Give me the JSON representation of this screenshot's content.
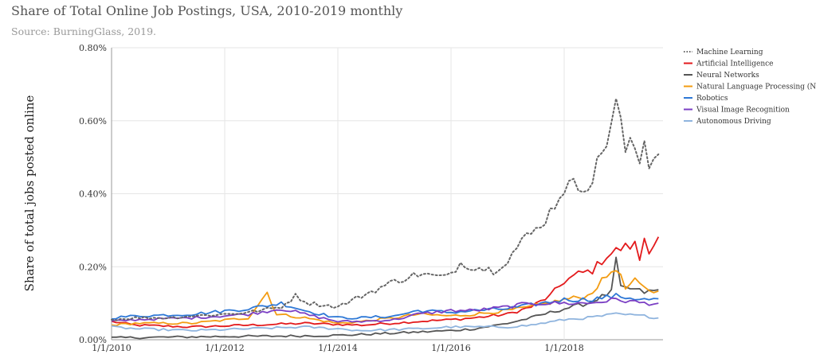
{
  "chart_data": {
    "type": "line",
    "title": "Share of Total Online Job Postings, USA, 2010-2019 monthly",
    "subtitle": "Source: BurningGlass, 2019.",
    "ylabel": "Share of total jobs posted online",
    "xlabel": "",
    "x_ticks": [
      "1/1/2010",
      "1/1/2012",
      "1/1/2014",
      "1/1/2016",
      "1/1/2018"
    ],
    "y_ticks": [
      "0.00%",
      "0.20%",
      "0.40%",
      "0.60%",
      "0.80%"
    ],
    "ylim": [
      0,
      0.8
    ],
    "xlim": [
      "2010-01",
      "2019-09"
    ],
    "y_unit": "%",
    "grid": true,
    "legend_position": "right",
    "series": [
      {
        "name": "Machine Learning",
        "color": "#666666",
        "dash": "dotted",
        "keypoints": [
          [
            "2010-01",
            0.055
          ],
          [
            "2010-06",
            0.06
          ],
          [
            "2011-01",
            0.06
          ],
          [
            "2011-06",
            0.065
          ],
          [
            "2012-01",
            0.07
          ],
          [
            "2012-06",
            0.075
          ],
          [
            "2013-01",
            0.09
          ],
          [
            "2013-04",
            0.12
          ],
          [
            "2013-07",
            0.1
          ],
          [
            "2014-01",
            0.09
          ],
          [
            "2014-06",
            0.12
          ],
          [
            "2015-01",
            0.16
          ],
          [
            "2015-06",
            0.18
          ],
          [
            "2015-12",
            0.17
          ],
          [
            "2016-03",
            0.21
          ],
          [
            "2016-06",
            0.2
          ],
          [
            "2016-10",
            0.19
          ],
          [
            "2017-01",
            0.22
          ],
          [
            "2017-04",
            0.27
          ],
          [
            "2017-07",
            0.3
          ],
          [
            "2017-10",
            0.35
          ],
          [
            "2018-01",
            0.42
          ],
          [
            "2018-04",
            0.42
          ],
          [
            "2018-07",
            0.44
          ],
          [
            "2018-10",
            0.55
          ],
          [
            "2018-12",
            0.65
          ],
          [
            "2019-02",
            0.52
          ],
          [
            "2019-04",
            0.53
          ],
          [
            "2019-05",
            0.48
          ],
          [
            "2019-06",
            0.56
          ],
          [
            "2019-07",
            0.49
          ],
          [
            "2019-09",
            0.51
          ]
        ]
      },
      {
        "name": "Artificial Intelligence",
        "color": "#e31a1c",
        "dash": "solid",
        "keypoints": [
          [
            "2010-01",
            0.05
          ],
          [
            "2010-06",
            0.04
          ],
          [
            "2011-06",
            0.035
          ],
          [
            "2012-06",
            0.04
          ],
          [
            "2013-06",
            0.045
          ],
          [
            "2014-06",
            0.04
          ],
          [
            "2015-06",
            0.05
          ],
          [
            "2016-01",
            0.055
          ],
          [
            "2016-06",
            0.06
          ],
          [
            "2017-01",
            0.07
          ],
          [
            "2017-06",
            0.09
          ],
          [
            "2017-10",
            0.12
          ],
          [
            "2018-01",
            0.16
          ],
          [
            "2018-04",
            0.18
          ],
          [
            "2018-07",
            0.19
          ],
          [
            "2018-10",
            0.23
          ],
          [
            "2019-01",
            0.25
          ],
          [
            "2019-04",
            0.26
          ],
          [
            "2019-05",
            0.22
          ],
          [
            "2019-06",
            0.28
          ],
          [
            "2019-07",
            0.25
          ],
          [
            "2019-09",
            0.275
          ]
        ]
      },
      {
        "name": "Neural Networks",
        "color": "#555555",
        "dash": "solid",
        "keypoints": [
          [
            "2010-01",
            0.005
          ],
          [
            "2011-01",
            0.007
          ],
          [
            "2012-01",
            0.009
          ],
          [
            "2013-01",
            0.01
          ],
          [
            "2014-01",
            0.012
          ],
          [
            "2015-01",
            0.018
          ],
          [
            "2016-01",
            0.025
          ],
          [
            "2016-06",
            0.03
          ],
          [
            "2017-01",
            0.045
          ],
          [
            "2017-06",
            0.06
          ],
          [
            "2018-01",
            0.085
          ],
          [
            "2018-06",
            0.1
          ],
          [
            "2018-11",
            0.13
          ],
          [
            "2018-12",
            0.22
          ],
          [
            "2019-01",
            0.14
          ],
          [
            "2019-03",
            0.14
          ],
          [
            "2019-06",
            0.13
          ],
          [
            "2019-09",
            0.135
          ]
        ]
      },
      {
        "name": "Natural Language Processing (NLP)",
        "color": "#f39c12",
        "dash": "solid",
        "keypoints": [
          [
            "2010-01",
            0.04
          ],
          [
            "2010-06",
            0.045
          ],
          [
            "2011-06",
            0.045
          ],
          [
            "2012-06",
            0.06
          ],
          [
            "2012-10",
            0.13
          ],
          [
            "2012-12",
            0.07
          ],
          [
            "2013-06",
            0.06
          ],
          [
            "2014-01",
            0.045
          ],
          [
            "2014-06",
            0.05
          ],
          [
            "2015-01",
            0.06
          ],
          [
            "2015-06",
            0.07
          ],
          [
            "2016-01",
            0.065
          ],
          [
            "2016-06",
            0.07
          ],
          [
            "2017-01",
            0.08
          ],
          [
            "2017-06",
            0.09
          ],
          [
            "2018-01",
            0.11
          ],
          [
            "2018-06",
            0.12
          ],
          [
            "2018-12",
            0.2
          ],
          [
            "2019-02",
            0.14
          ],
          [
            "2019-04",
            0.16
          ],
          [
            "2019-06",
            0.14
          ],
          [
            "2019-09",
            0.13
          ]
        ]
      },
      {
        "name": "Robotics",
        "color": "#2e78d6",
        "dash": "solid",
        "keypoints": [
          [
            "2010-01",
            0.06
          ],
          [
            "2010-06",
            0.065
          ],
          [
            "2011-06",
            0.07
          ],
          [
            "2012-06",
            0.085
          ],
          [
            "2013-01",
            0.1
          ],
          [
            "2013-06",
            0.08
          ],
          [
            "2014-01",
            0.06
          ],
          [
            "2014-06",
            0.06
          ],
          [
            "2015-01",
            0.065
          ],
          [
            "2015-06",
            0.08
          ],
          [
            "2016-01",
            0.075
          ],
          [
            "2016-06",
            0.08
          ],
          [
            "2017-01",
            0.085
          ],
          [
            "2017-06",
            0.095
          ],
          [
            "2018-01",
            0.11
          ],
          [
            "2018-06",
            0.11
          ],
          [
            "2018-12",
            0.12
          ],
          [
            "2019-06",
            0.11
          ],
          [
            "2019-09",
            0.11
          ]
        ]
      },
      {
        "name": "Visual Image Recognition",
        "color": "#7b3fc4",
        "dash": "solid",
        "keypoints": [
          [
            "2010-01",
            0.05
          ],
          [
            "2010-06",
            0.055
          ],
          [
            "2011-06",
            0.06
          ],
          [
            "2012-06",
            0.07
          ],
          [
            "2013-01",
            0.085
          ],
          [
            "2013-06",
            0.07
          ],
          [
            "2014-01",
            0.05
          ],
          [
            "2014-06",
            0.05
          ],
          [
            "2015-01",
            0.055
          ],
          [
            "2015-06",
            0.07
          ],
          [
            "2016-01",
            0.08
          ],
          [
            "2016-06",
            0.08
          ],
          [
            "2017-01",
            0.09
          ],
          [
            "2017-06",
            0.1
          ],
          [
            "2018-01",
            0.1
          ],
          [
            "2018-06",
            0.1
          ],
          [
            "2018-12",
            0.11
          ],
          [
            "2019-06",
            0.1
          ],
          [
            "2019-09",
            0.1
          ]
        ]
      },
      {
        "name": "Autonomous Driving",
        "color": "#8fb4de",
        "dash": "solid",
        "keypoints": [
          [
            "2010-01",
            0.035
          ],
          [
            "2010-06",
            0.03
          ],
          [
            "2011-06",
            0.025
          ],
          [
            "2012-06",
            0.03
          ],
          [
            "2013-06",
            0.035
          ],
          [
            "2014-01",
            0.03
          ],
          [
            "2014-06",
            0.025
          ],
          [
            "2015-06",
            0.03
          ],
          [
            "2016-01",
            0.035
          ],
          [
            "2016-06",
            0.035
          ],
          [
            "2017-01",
            0.035
          ],
          [
            "2017-06",
            0.04
          ],
          [
            "2018-01",
            0.055
          ],
          [
            "2018-06",
            0.06
          ],
          [
            "2018-12",
            0.07
          ],
          [
            "2019-06",
            0.065
          ],
          [
            "2019-09",
            0.06
          ]
        ]
      }
    ]
  }
}
